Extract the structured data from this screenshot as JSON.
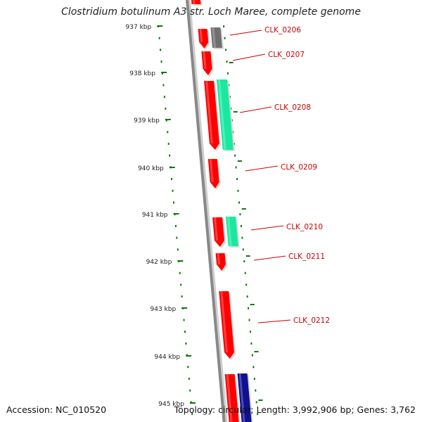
{
  "title": "Clostridium botulinum A3 str. Loch Maree, complete genome",
  "footer": {
    "accession": "Accession: NC_010520",
    "topology": "Topology: circular; Length: 3,992,906 bp; Genes: 3,762"
  },
  "colors": {
    "backbone": "#888888",
    "tick": "#0a7a0a",
    "forward_gene": "#ff0000",
    "reverse_gene": "#19e8a0",
    "pseudo_gene": "#707070",
    "other_gene": "#101090",
    "label": "#cc0000"
  },
  "ticks": [
    {
      "label": "937 kbp"
    },
    {
      "label": "938 kbp"
    },
    {
      "label": "939 kbp"
    },
    {
      "label": "940 kbp"
    },
    {
      "label": "941 kbp"
    },
    {
      "label": "942 kbp"
    },
    {
      "label": "943 kbp"
    },
    {
      "label": "944 kbp"
    },
    {
      "label": "945 kbp"
    }
  ],
  "labels": [
    {
      "text": "CLK_0206"
    },
    {
      "text": "CLK_0207"
    },
    {
      "text": "CLK_0208"
    },
    {
      "text": "CLK_0209"
    },
    {
      "text": "CLK_0210"
    },
    {
      "text": "CLK_0211"
    },
    {
      "text": "CLK_0212"
    }
  ]
}
